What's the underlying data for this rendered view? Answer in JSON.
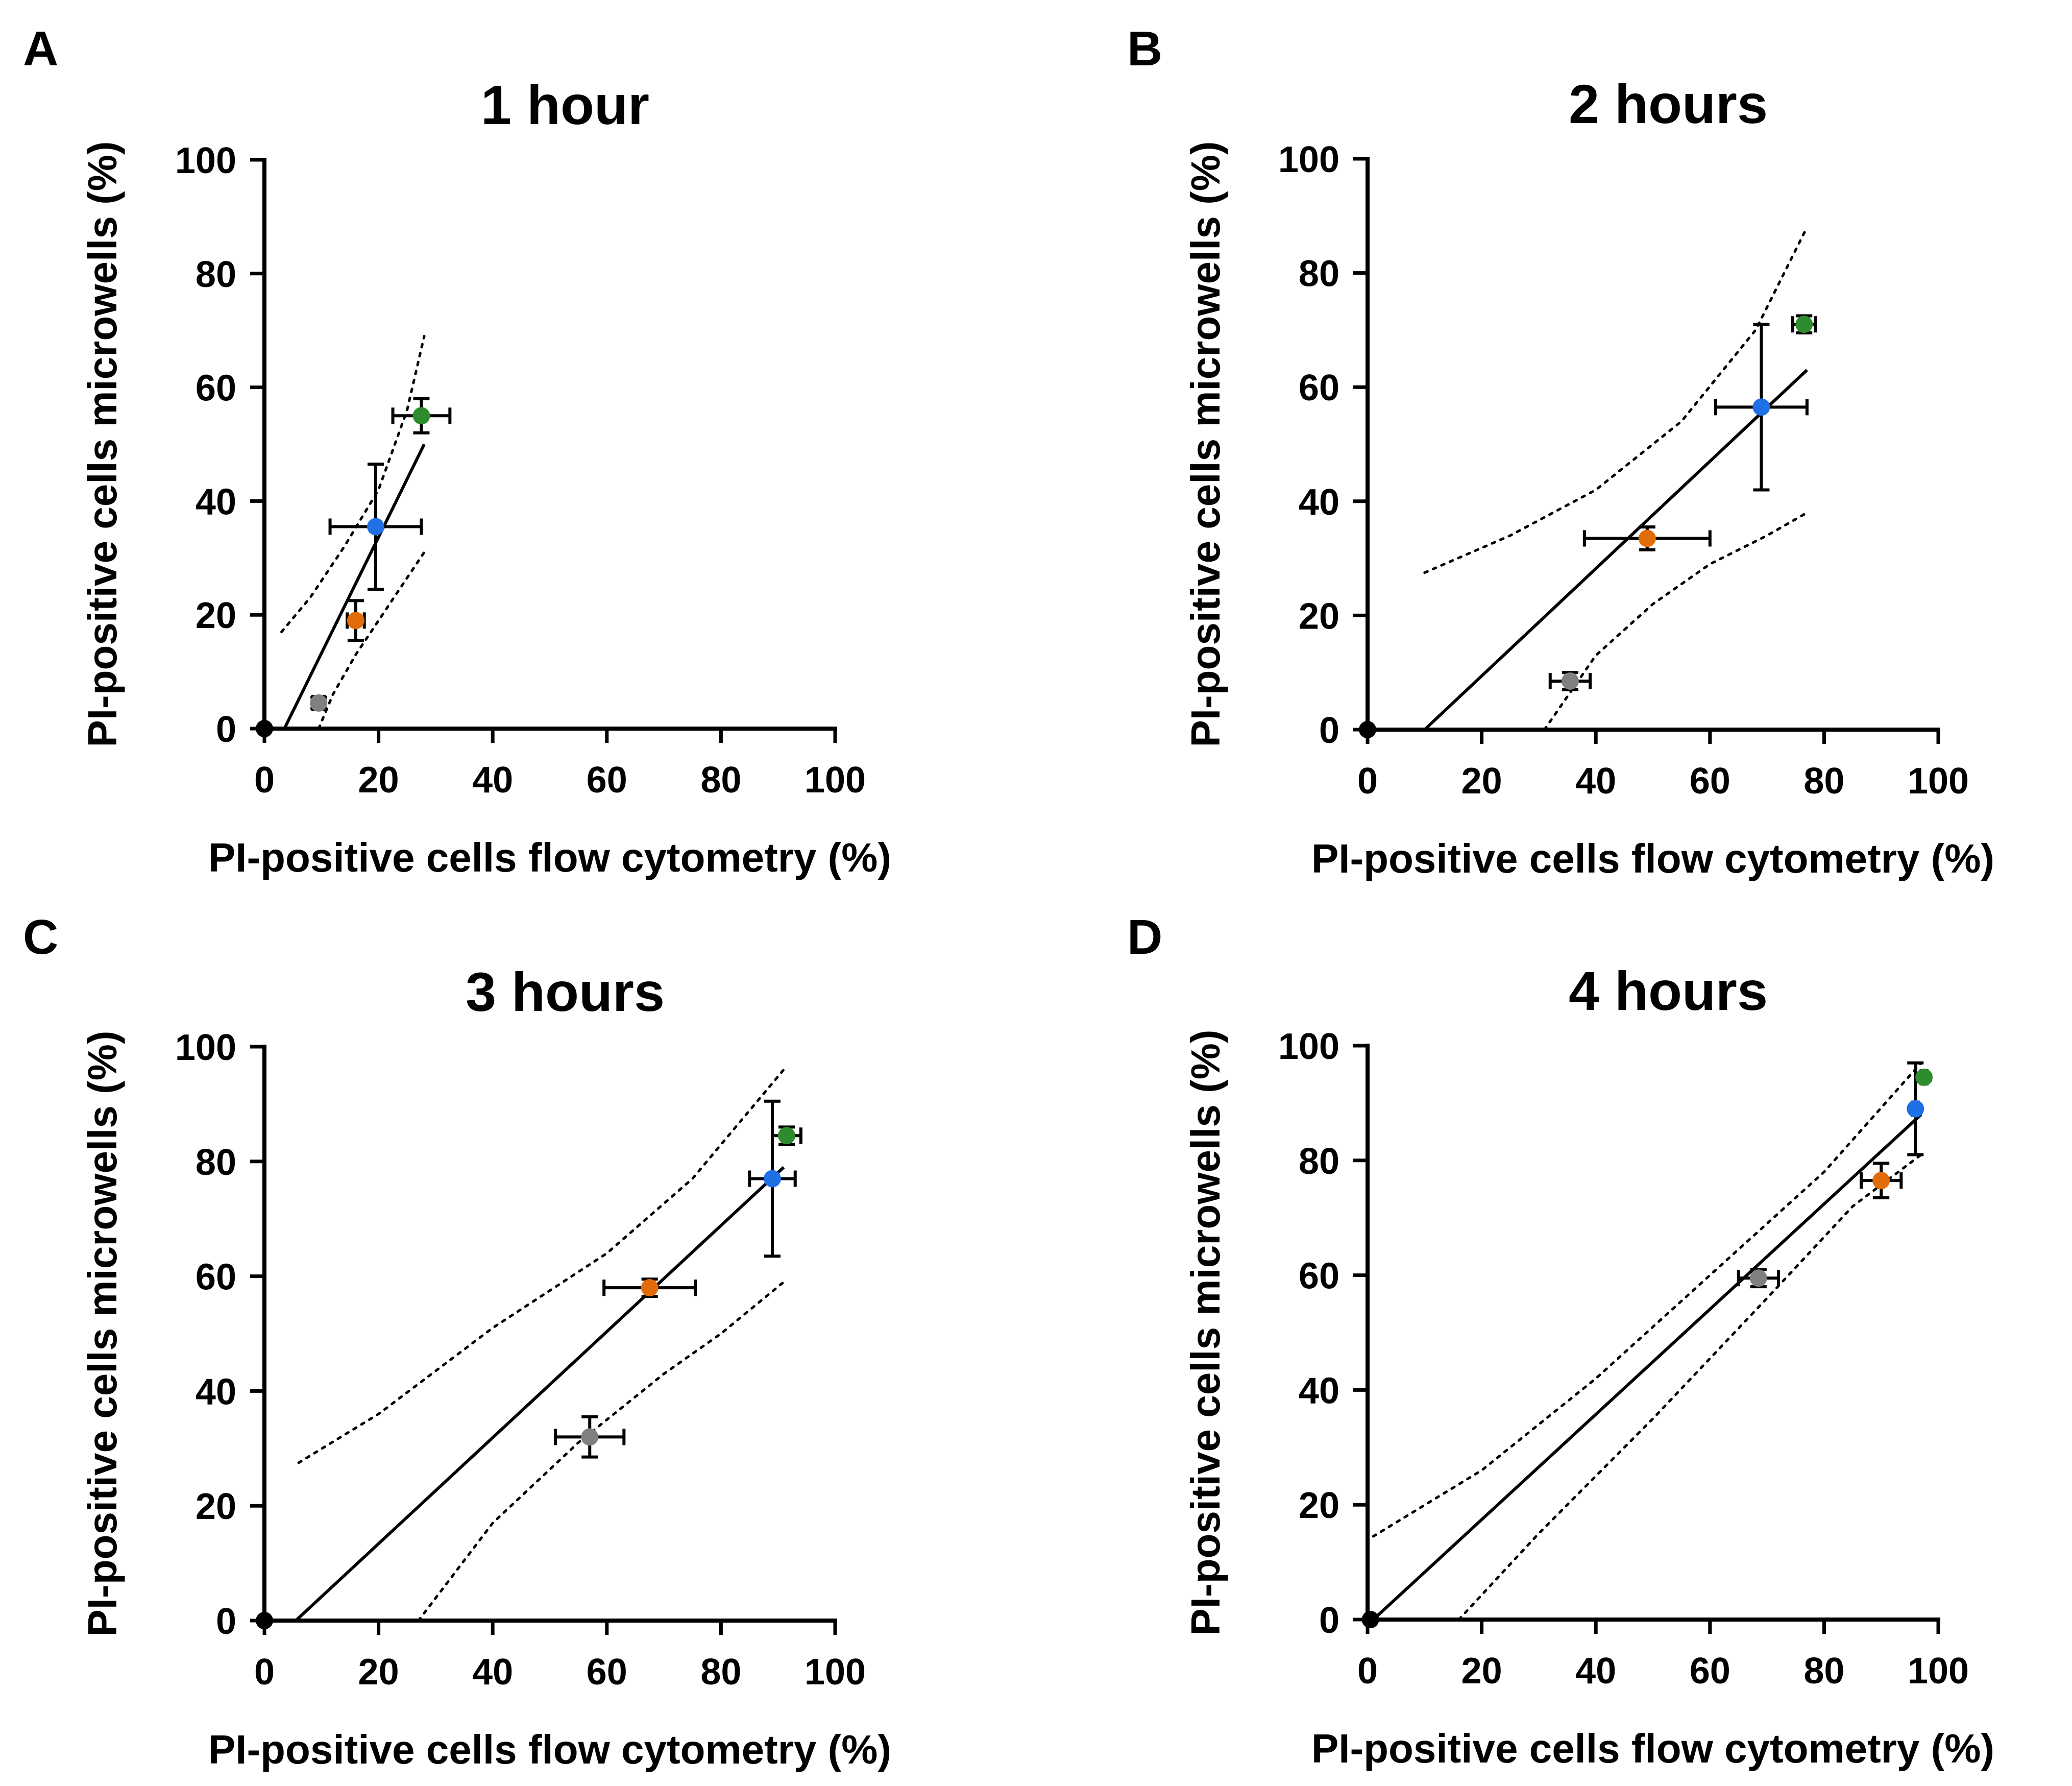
{
  "chart_data": [
    {
      "type": "scatter",
      "panel": "A",
      "title": "1 hour",
      "xlabel": "PI-positive cells flow cytometry (%)",
      "ylabel": "PI-positive cells microwells (%)",
      "xlim": [
        0,
        100
      ],
      "ylim": [
        0,
        100
      ],
      "xticks": [
        0,
        20,
        40,
        60,
        80,
        100
      ],
      "yticks": [
        0,
        20,
        40,
        60,
        80,
        100
      ],
      "fit": {
        "x": [
          3.5,
          28
        ],
        "y": [
          0,
          50
        ]
      },
      "ci_upper": [
        [
          3,
          17
        ],
        [
          8,
          23
        ],
        [
          14,
          32
        ],
        [
          20,
          42
        ],
        [
          25,
          56
        ],
        [
          28,
          69
        ]
      ],
      "ci_lower": [
        [
          9.5,
          0
        ],
        [
          12,
          6
        ],
        [
          16,
          13
        ],
        [
          20,
          19
        ],
        [
          24,
          25
        ],
        [
          28,
          31
        ]
      ],
      "points": [
        {
          "x": 0,
          "y": 0,
          "color": "#000000"
        },
        {
          "x": 9.5,
          "y": 4.5,
          "xerr": 1,
          "yerr": 1,
          "color": "#808080"
        },
        {
          "x": 16,
          "y": 19,
          "xerr": 1.5,
          "yerr": 3.5,
          "color": "#e36c0a"
        },
        {
          "x": 19.5,
          "y": 35.5,
          "xerr": 8,
          "yerr": 11,
          "color": "#1f6fe5"
        },
        {
          "x": 27.5,
          "y": 55,
          "xerr": 5,
          "yerr": 3,
          "color": "#2e8b2e"
        }
      ]
    },
    {
      "type": "scatter",
      "panel": "B",
      "title": "2 hours",
      "xlabel": "PI-positive cells flow cytometry (%)",
      "ylabel": "PI-positive cells microwells (%)",
      "xlim": [
        0,
        100
      ],
      "ylim": [
        0,
        100
      ],
      "xticks": [
        0,
        20,
        40,
        60,
        80,
        100
      ],
      "yticks": [
        0,
        20,
        40,
        60,
        80,
        100
      ],
      "fit": {
        "x": [
          10,
          77
        ],
        "y": [
          0,
          63
        ]
      },
      "ci_upper": [
        [
          10,
          27.5
        ],
        [
          25,
          34
        ],
        [
          40,
          42
        ],
        [
          55,
          54
        ],
        [
          68,
          70
        ],
        [
          77,
          88
        ]
      ],
      "ci_lower": [
        [
          31,
          0
        ],
        [
          40,
          13
        ],
        [
          50,
          22
        ],
        [
          60,
          29
        ],
        [
          70,
          34
        ],
        [
          77,
          38
        ]
      ],
      "points": [
        {
          "x": 0,
          "y": 0,
          "color": "#000000"
        },
        {
          "x": 35.5,
          "y": 8.5,
          "xerr": 3.5,
          "yerr": 1.5,
          "color": "#808080"
        },
        {
          "x": 49,
          "y": 33.5,
          "xerr": 11,
          "yerr": 2,
          "color": "#e36c0a"
        },
        {
          "x": 69,
          "y": 56.5,
          "xerr": 8,
          "yerr": 14.5,
          "color": "#1f6fe5"
        },
        {
          "x": 76.5,
          "y": 71,
          "xerr": 2,
          "yerr": 1.5,
          "color": "#2e8b2e"
        }
      ]
    },
    {
      "type": "scatter",
      "panel": "C",
      "title": "3 hours",
      "xlabel": "PI-positive cells flow cytometry (%)",
      "ylabel": "PI-positive cells microwells (%)",
      "xlim": [
        0,
        100
      ],
      "ylim": [
        0,
        100
      ],
      "xticks": [
        0,
        20,
        40,
        60,
        80,
        100
      ],
      "yticks": [
        0,
        20,
        40,
        60,
        80,
        100
      ],
      "fit": {
        "x": [
          5.5,
          91
        ],
        "y": [
          0,
          79
        ]
      },
      "ci_upper": [
        [
          6,
          27.5
        ],
        [
          20,
          36
        ],
        [
          40,
          51
        ],
        [
          60,
          64
        ],
        [
          75,
          77
        ],
        [
          91,
          96
        ]
      ],
      "ci_lower": [
        [
          27,
          0
        ],
        [
          40,
          17
        ],
        [
          55,
          31
        ],
        [
          70,
          43
        ],
        [
          80,
          50
        ],
        [
          91,
          59
        ]
      ],
      "points": [
        {
          "x": 0,
          "y": 0,
          "color": "#000000"
        },
        {
          "x": 57,
          "y": 32,
          "xerr": 6,
          "yerr": 3.5,
          "color": "#808080"
        },
        {
          "x": 67.5,
          "y": 58,
          "xerr": 8,
          "yerr": 1.5,
          "color": "#e36c0a"
        },
        {
          "x": 89,
          "y": 77,
          "xerr": 4,
          "yerr": 13.5,
          "color": "#1f6fe5"
        },
        {
          "x": 91.5,
          "y": 84.5,
          "xerr": 2.5,
          "yerr": 1.5,
          "color": "#2e8b2e"
        }
      ]
    },
    {
      "type": "scatter",
      "panel": "D",
      "title": "4 hours",
      "xlabel": "PI-positive cells flow cytometry (%)",
      "ylabel": "PI-positive cells microwells (%)",
      "xlim": [
        0,
        100
      ],
      "ylim": [
        0,
        100
      ],
      "xticks": [
        0,
        20,
        40,
        60,
        80,
        100
      ],
      "yticks": [
        0,
        20,
        40,
        60,
        80,
        100
      ],
      "fit": {
        "x": [
          1,
          97
        ],
        "y": [
          0,
          88
        ]
      },
      "ci_upper": [
        [
          1,
          14.5
        ],
        [
          20,
          26
        ],
        [
          40,
          42
        ],
        [
          60,
          60
        ],
        [
          80,
          78
        ],
        [
          97,
          97
        ]
      ],
      "ci_lower": [
        [
          16,
          0
        ],
        [
          30,
          15
        ],
        [
          50,
          35
        ],
        [
          70,
          56
        ],
        [
          85,
          72
        ],
        [
          97,
          81
        ]
      ],
      "points": [
        {
          "x": 0.5,
          "y": 0,
          "color": "#000000"
        },
        {
          "x": 68.5,
          "y": 59.5,
          "xerr": 3.5,
          "yerr": 1.5,
          "color": "#808080"
        },
        {
          "x": 90,
          "y": 76.5,
          "xerr": 3.5,
          "yerr": 3,
          "color": "#e36c0a"
        },
        {
          "x": 96,
          "y": 89,
          "xerr": 0.5,
          "yerr": 8,
          "color": "#1f6fe5"
        },
        {
          "x": 97.5,
          "y": 94.5,
          "xerr": 0.5,
          "yerr": 0.5,
          "color": "#2e8b2e"
        }
      ]
    }
  ]
}
